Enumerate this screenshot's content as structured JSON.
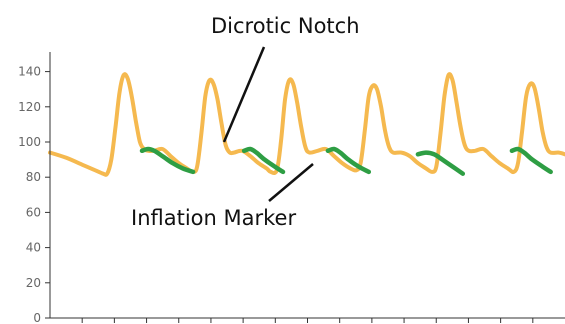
{
  "chart_data": {
    "type": "line",
    "title": "",
    "xlabel": "",
    "ylabel": "",
    "ylim": [
      0,
      150
    ],
    "yticks": [
      0,
      20,
      40,
      60,
      80,
      100,
      120,
      140
    ],
    "xtick_count": 16,
    "series": [
      {
        "key": "pressure",
        "color": "#F5B94F",
        "points": [
          [
            0,
            94
          ],
          [
            8,
            91
          ],
          [
            16,
            87
          ],
          [
            22,
            84
          ],
          [
            26,
            82
          ],
          [
            28,
            82
          ],
          [
            30,
            90
          ],
          [
            32,
            108
          ],
          [
            34,
            128
          ],
          [
            36,
            138
          ],
          [
            38,
            136
          ],
          [
            40,
            126
          ],
          [
            42,
            112
          ],
          [
            44,
            100
          ],
          [
            46,
            96
          ],
          [
            48,
            95
          ],
          [
            51,
            95
          ],
          [
            55,
            96
          ],
          [
            59,
            92
          ],
          [
            63,
            88
          ],
          [
            67,
            85
          ],
          [
            70,
            83
          ],
          [
            72,
            86
          ],
          [
            74,
            104
          ],
          [
            76,
            126
          ],
          [
            78,
            135
          ],
          [
            80,
            133
          ],
          [
            82,
            124
          ],
          [
            84,
            110
          ],
          [
            86,
            98
          ],
          [
            88,
            94
          ],
          [
            90,
            94
          ],
          [
            94,
            95
          ],
          [
            98,
            92
          ],
          [
            102,
            88
          ],
          [
            106,
            85
          ],
          [
            108,
            83
          ],
          [
            111,
            84
          ],
          [
            113,
            100
          ],
          [
            115,
            124
          ],
          [
            117,
            135
          ],
          [
            119,
            133
          ],
          [
            121,
            122
          ],
          [
            123,
            108
          ],
          [
            125,
            97
          ],
          [
            127,
            94
          ],
          [
            131,
            95
          ],
          [
            135,
            96
          ],
          [
            139,
            92
          ],
          [
            143,
            88
          ],
          [
            147,
            85
          ],
          [
            150,
            84
          ],
          [
            152,
            88
          ],
          [
            154,
            106
          ],
          [
            156,
            126
          ],
          [
            158,
            132
          ],
          [
            160,
            130
          ],
          [
            162,
            120
          ],
          [
            164,
            106
          ],
          [
            166,
            97
          ],
          [
            168,
            94
          ],
          [
            172,
            94
          ],
          [
            176,
            92
          ],
          [
            180,
            88
          ],
          [
            184,
            85
          ],
          [
            187,
            83
          ],
          [
            189,
            86
          ],
          [
            191,
            104
          ],
          [
            193,
            126
          ],
          [
            195,
            138
          ],
          [
            197,
            135
          ],
          [
            199,
            122
          ],
          [
            201,
            108
          ],
          [
            203,
            98
          ],
          [
            205,
            95
          ],
          [
            208,
            95
          ],
          [
            212,
            96
          ],
          [
            216,
            92
          ],
          [
            220,
            88
          ],
          [
            224,
            85
          ],
          [
            227,
            83
          ],
          [
            229,
            88
          ],
          [
            231,
            106
          ],
          [
            233,
            126
          ],
          [
            235,
            133
          ],
          [
            237,
            131
          ],
          [
            239,
            120
          ],
          [
            241,
            106
          ],
          [
            243,
            97
          ],
          [
            245,
            94
          ],
          [
            249,
            94
          ],
          [
            252,
            93
          ]
        ]
      },
      {
        "key": "inflation",
        "color": "#2E9E44",
        "segments": [
          [
            [
              45,
              95
            ],
            [
              48,
              96
            ],
            [
              51,
              95
            ],
            [
              55,
              92
            ],
            [
              60,
              88
            ],
            [
              65,
              85
            ],
            [
              70,
              83
            ]
          ],
          [
            [
              95,
              95
            ],
            [
              98,
              96
            ],
            [
              101,
              94
            ],
            [
              105,
              90
            ],
            [
              110,
              86
            ],
            [
              114,
              83
            ]
          ],
          [
            [
              136,
              95
            ],
            [
              139,
              96
            ],
            [
              142,
              94
            ],
            [
              146,
              90
            ],
            [
              151,
              86
            ],
            [
              156,
              83
            ]
          ],
          [
            [
              180,
              93
            ],
            [
              184,
              94
            ],
            [
              188,
              93
            ],
            [
              192,
              90
            ],
            [
              197,
              86
            ],
            [
              202,
              82
            ]
          ],
          [
            [
              226,
              95
            ],
            [
              229,
              96
            ],
            [
              232,
              94
            ],
            [
              236,
              90
            ],
            [
              241,
              86
            ],
            [
              245,
              83
            ]
          ]
        ]
      }
    ],
    "annotations": {
      "dicrotic_notch": "Dicrotic Notch",
      "inflation_marker": "Inflation Marker"
    }
  }
}
